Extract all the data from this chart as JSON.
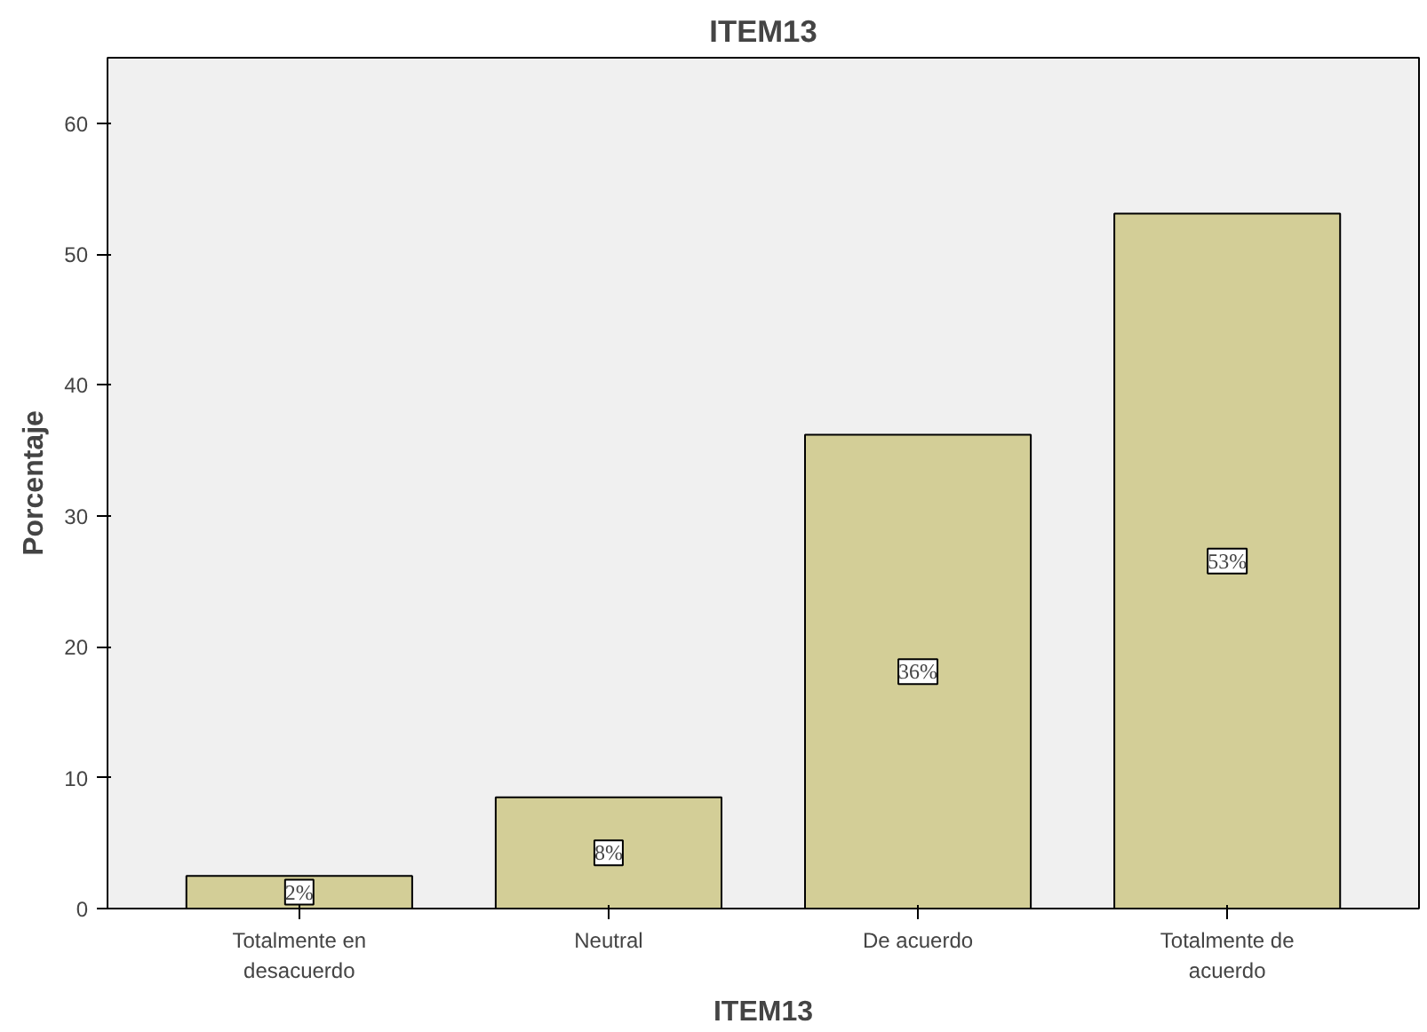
{
  "chart_data": {
    "type": "bar",
    "title": "ITEM13",
    "xlabel": "ITEM13",
    "ylabel": "Porcentaje",
    "categories": [
      "Totalmente en desacuerdo",
      "Neutral",
      "De acuerdo",
      "Totalmente de acuerdo"
    ],
    "values": [
      2.5,
      8.5,
      36.2,
      53.1
    ],
    "color": "#d3ce97",
    "value_labels": [
      "2%",
      "8%",
      "36%",
      "53%"
    ],
    "ylim": [
      0,
      65
    ],
    "yticks": [
      0,
      10,
      20,
      30,
      40,
      50,
      60
    ],
    "grid": false
  }
}
